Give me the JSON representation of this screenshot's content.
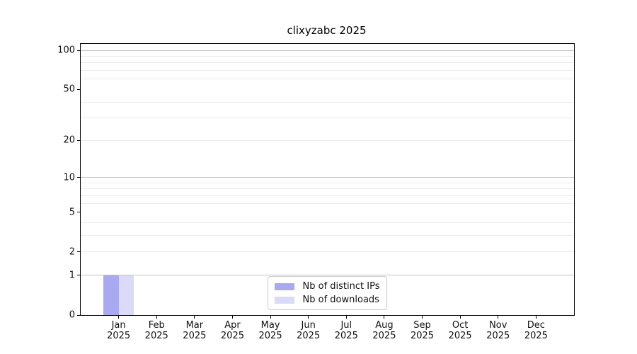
{
  "chart_data": {
    "type": "bar",
    "title": "clixyzabc 2025",
    "categories": {
      "months": [
        "Jan",
        "Feb",
        "Mar",
        "Apr",
        "May",
        "Jun",
        "Jul",
        "Aug",
        "Sep",
        "Oct",
        "Nov",
        "Dec"
      ],
      "year": "2025"
    },
    "series": [
      {
        "name": "Nb of distinct IPs",
        "color": "#a9a9f1",
        "values": [
          1,
          0,
          0,
          0,
          0,
          0,
          0,
          0,
          0,
          0,
          0,
          0
        ]
      },
      {
        "name": "Nb of downloads",
        "color": "#dbdbf7",
        "values": [
          1,
          0,
          0,
          0,
          0,
          0,
          0,
          0,
          0,
          0,
          0,
          0
        ]
      }
    ],
    "xlabel": "",
    "ylabel": "",
    "y_axis": {
      "scale": "log1p",
      "labeled_ticks": [
        0,
        1,
        2,
        5,
        10,
        20,
        50,
        100
      ],
      "decade_gridlines": [
        1,
        10,
        100
      ],
      "minor_gridlines": [
        2,
        3,
        4,
        6,
        7,
        8,
        9,
        20,
        30,
        40,
        60,
        70,
        80,
        90
      ],
      "ylim": [
        0,
        112
      ]
    },
    "legend": {
      "position": "lower center"
    },
    "grid": true,
    "bar_width_fraction": 0.4
  }
}
